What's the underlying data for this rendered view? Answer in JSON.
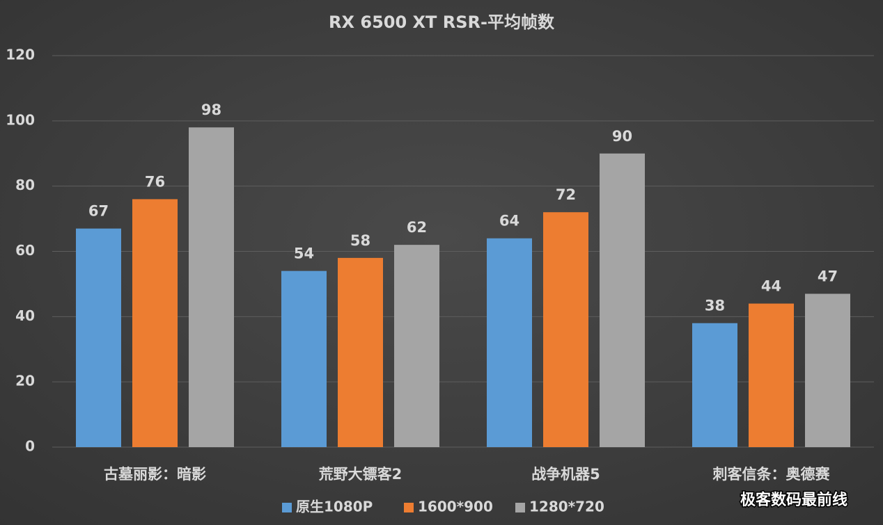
{
  "chart_data": {
    "type": "bar",
    "title": "RX 6500 XT RSR-平均帧数",
    "categories": [
      "古墓丽影：暗影",
      "荒野大镖客2",
      "战争机器5",
      "刺客信条：奥德赛"
    ],
    "series": [
      {
        "name": "原生1080P",
        "color": "#5b9bd5",
        "values": [
          67,
          54,
          64,
          38
        ]
      },
      {
        "name": "1600*900",
        "color": "#ed7d31",
        "values": [
          76,
          58,
          72,
          44
        ]
      },
      {
        "name": "1280*720",
        "color": "#a5a5a5",
        "values": [
          98,
          62,
          90,
          47
        ]
      }
    ],
    "ylim": [
      0,
      120
    ],
    "yticks": [
      0,
      20,
      40,
      60,
      80,
      100,
      120
    ],
    "grid": true,
    "legend": "bottom",
    "watermark": "极客数码最前线"
  }
}
